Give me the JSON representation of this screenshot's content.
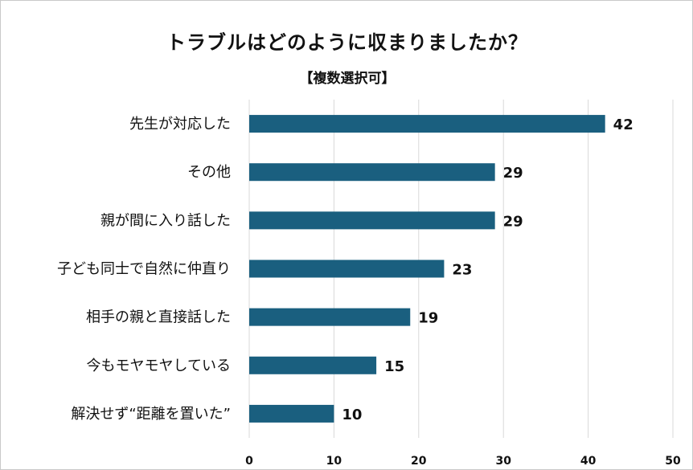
{
  "chart_data": {
    "type": "bar",
    "orientation": "horizontal",
    "title": "トラブルはどのように収まりましたか？",
    "subtitle": "【複数選択可】",
    "categories": [
      "先生が対応した",
      "その他",
      "親が間に入り話した",
      "子ども同士で自然に仲直り",
      "相手の親と直接話した",
      "今もモヤモヤしている",
      "解決せず“距離を置いた”"
    ],
    "values": [
      42,
      29,
      29,
      23,
      19,
      15,
      10
    ],
    "xlim": [
      0,
      50
    ],
    "xticks": [
      0,
      10,
      20,
      30,
      40,
      50
    ],
    "grid": true,
    "bar_color": "#1a5f7f",
    "grid_color": "#d9d9d9"
  }
}
